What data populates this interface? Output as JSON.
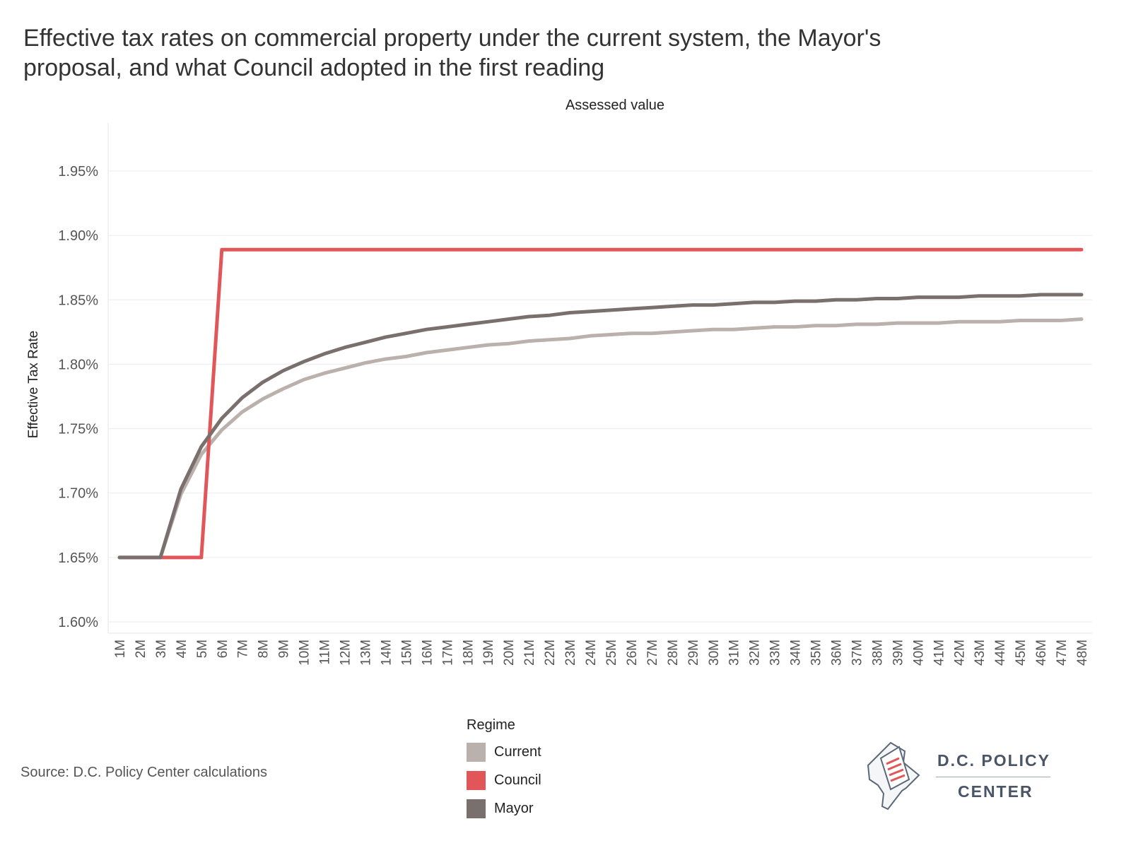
{
  "title_lines": [
    "Effective tax rates on commercial property under the current system, the Mayor's",
    "proposal, and what Council adopted in the first reading"
  ],
  "source_text": "Source: D.C. Policy Center calculations",
  "brand": {
    "name": "D.C. POLICY",
    "sub": "CENTER",
    "icon": "document-map-icon"
  },
  "chart_data": {
    "type": "line",
    "title": "Effective tax rates on commercial property under the current system, the Mayor's proposal, and what Council adopted in the first reading",
    "x_header": "Assessed value",
    "ylabel": "Effective Tax Rate",
    "ylim": [
      1.6,
      1.97
    ],
    "y_ticks": [
      1.6,
      1.65,
      1.7,
      1.75,
      1.8,
      1.85,
      1.9,
      1.95
    ],
    "y_tick_labels": [
      "1.60%",
      "1.65%",
      "1.70%",
      "1.75%",
      "1.80%",
      "1.85%",
      "1.90%",
      "1.95%"
    ],
    "grid": true,
    "legend_title": "Regime",
    "legend_position": "bottom-center",
    "x": [
      "1M",
      "2M",
      "3M",
      "4M",
      "5M",
      "6M",
      "7M",
      "8M",
      "9M",
      "10M",
      "11M",
      "12M",
      "13M",
      "14M",
      "15M",
      "16M",
      "17M",
      "18M",
      "19M",
      "20M",
      "21M",
      "22M",
      "23M",
      "24M",
      "25M",
      "26M",
      "27M",
      "28M",
      "29M",
      "30M",
      "31M",
      "32M",
      "33M",
      "34M",
      "35M",
      "36M",
      "37M",
      "38M",
      "39M",
      "40M",
      "41M",
      "42M",
      "43M",
      "44M",
      "45M",
      "46M",
      "47M",
      "48M"
    ],
    "series": [
      {
        "name": "Current",
        "color": "#bab0ac",
        "values": [
          1.65,
          1.65,
          1.65,
          1.699,
          1.73,
          1.749,
          1.763,
          1.773,
          1.781,
          1.788,
          1.793,
          1.797,
          1.801,
          1.804,
          1.806,
          1.809,
          1.811,
          1.813,
          1.815,
          1.816,
          1.818,
          1.819,
          1.82,
          1.822,
          1.823,
          1.824,
          1.824,
          1.825,
          1.826,
          1.827,
          1.827,
          1.828,
          1.829,
          1.829,
          1.83,
          1.83,
          1.831,
          1.831,
          1.832,
          1.832,
          1.832,
          1.833,
          1.833,
          1.833,
          1.834,
          1.834,
          1.834,
          1.835
        ]
      },
      {
        "name": "Council",
        "color": "#e15759",
        "values": [
          1.65,
          1.65,
          1.65,
          1.65,
          1.65,
          1.889,
          1.889,
          1.889,
          1.889,
          1.889,
          1.889,
          1.889,
          1.889,
          1.889,
          1.889,
          1.889,
          1.889,
          1.889,
          1.889,
          1.889,
          1.889,
          1.889,
          1.889,
          1.889,
          1.889,
          1.889,
          1.889,
          1.889,
          1.889,
          1.889,
          1.889,
          1.889,
          1.889,
          1.889,
          1.889,
          1.889,
          1.889,
          1.889,
          1.889,
          1.889,
          1.889,
          1.889,
          1.889,
          1.889,
          1.889,
          1.889,
          1.889,
          1.889
        ]
      },
      {
        "name": "Mayor",
        "color": "#79706e",
        "values": [
          1.65,
          1.65,
          1.65,
          1.703,
          1.736,
          1.758,
          1.774,
          1.786,
          1.795,
          1.802,
          1.808,
          1.813,
          1.817,
          1.821,
          1.824,
          1.827,
          1.829,
          1.831,
          1.833,
          1.835,
          1.837,
          1.838,
          1.84,
          1.841,
          1.842,
          1.843,
          1.844,
          1.845,
          1.846,
          1.846,
          1.847,
          1.848,
          1.848,
          1.849,
          1.849,
          1.85,
          1.85,
          1.851,
          1.851,
          1.852,
          1.852,
          1.852,
          1.853,
          1.853,
          1.853,
          1.854,
          1.854,
          1.854
        ]
      }
    ]
  }
}
